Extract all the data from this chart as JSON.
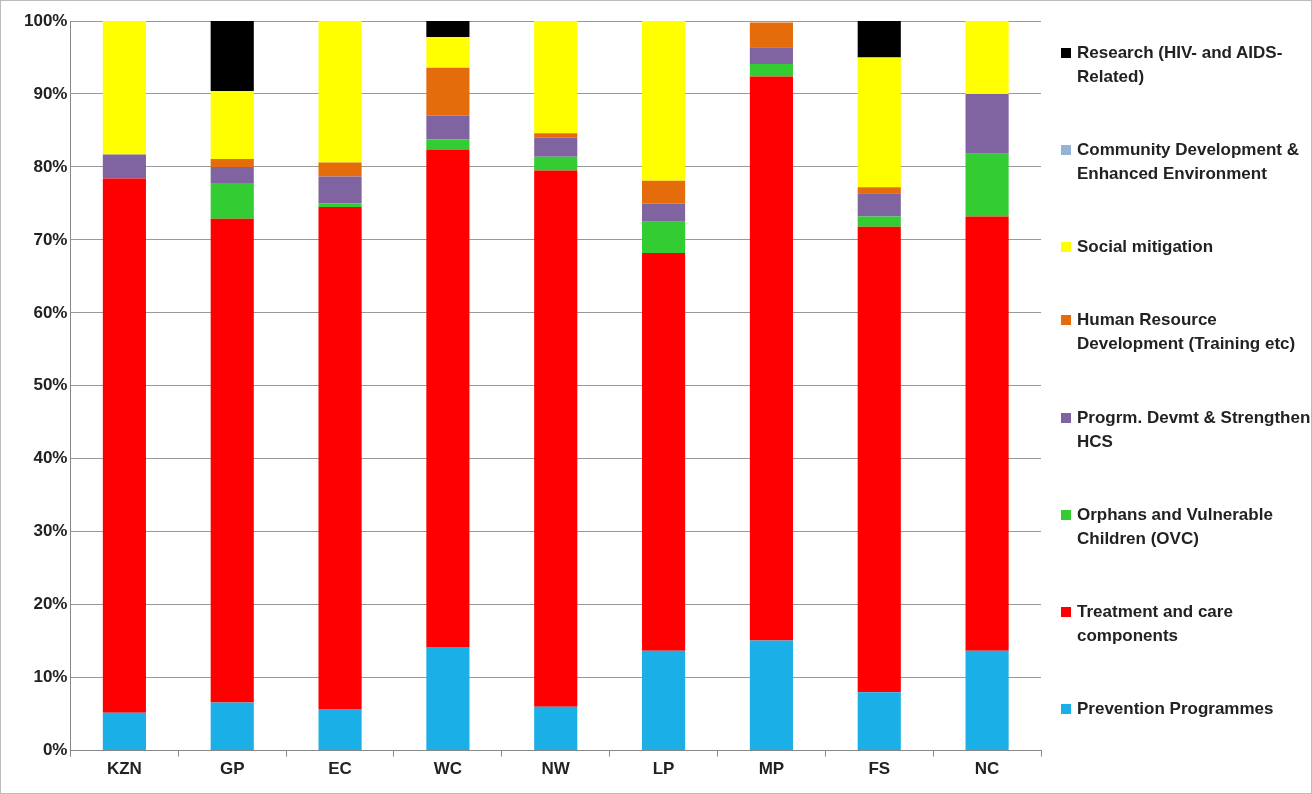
{
  "chart_data": {
    "type": "bar",
    "stacked": true,
    "categories": [
      "KZN",
      "GP",
      "EC",
      "WC",
      "NW",
      "LP",
      "MP",
      "FS",
      "NC"
    ],
    "series": [
      {
        "name": "Prevention Programmes",
        "color": "#1aafe6",
        "values": [
          5.2,
          6.6,
          5.7,
          14.2,
          6.0,
          13.7,
          15.1,
          8.0,
          13.7
        ]
      },
      {
        "name": "Treatment and care components",
        "color": "#ff0000",
        "values": [
          73.2,
          66.3,
          68.8,
          68.2,
          73.5,
          54.5,
          77.3,
          63.8,
          59.5
        ]
      },
      {
        "name": "Orphans and Vulnerable Children (OVC)",
        "color": "#33cc33",
        "values": [
          0,
          4.9,
          0.5,
          1.4,
          1.9,
          4.3,
          1.7,
          1.4,
          8.6
        ]
      },
      {
        "name": "Progrm. Devmt & Strengthen HCS",
        "color": "#8064a2",
        "values": [
          3.3,
          2.2,
          3.7,
          3.2,
          2.6,
          2.5,
          2.3,
          3.2,
          8.2
        ]
      },
      {
        "name": "Human Resource Development (Training etc)",
        "color": "#e46c0a",
        "values": [
          0,
          1.1,
          1.9,
          6.6,
          0.6,
          3.1,
          3.4,
          0.8,
          0
        ]
      },
      {
        "name": "Social mitigation",
        "color": "#ffff00",
        "values": [
          18.3,
          9.3,
          19.4,
          4.2,
          15.4,
          21.9,
          0,
          17.8,
          10.0
        ]
      },
      {
        "name": "Community Development & Enhanced Environment",
        "color": "#95b3d7",
        "values": [
          0,
          0,
          0,
          0,
          0,
          0,
          0,
          0,
          0
        ]
      },
      {
        "name": "Research (HIV- and AIDS-Related)",
        "color": "#000000",
        "values": [
          0,
          9.6,
          0,
          2.2,
          0,
          0,
          0,
          5.0,
          0
        ]
      }
    ],
    "ylim": [
      0,
      100
    ],
    "yticks": [
      {
        "value": 0,
        "label": "0%"
      },
      {
        "value": 10,
        "label": "10%"
      },
      {
        "value": 20,
        "label": "20%"
      },
      {
        "value": 30,
        "label": "30%"
      },
      {
        "value": 40,
        "label": "40%"
      },
      {
        "value": 50,
        "label": "50%"
      },
      {
        "value": 60,
        "label": "60%"
      },
      {
        "value": 70,
        "label": "70%"
      },
      {
        "value": 80,
        "label": "80%"
      },
      {
        "value": 90,
        "label": "90%"
      },
      {
        "value": 100,
        "label": "100%"
      }
    ],
    "grid": "y",
    "legend": "right"
  }
}
